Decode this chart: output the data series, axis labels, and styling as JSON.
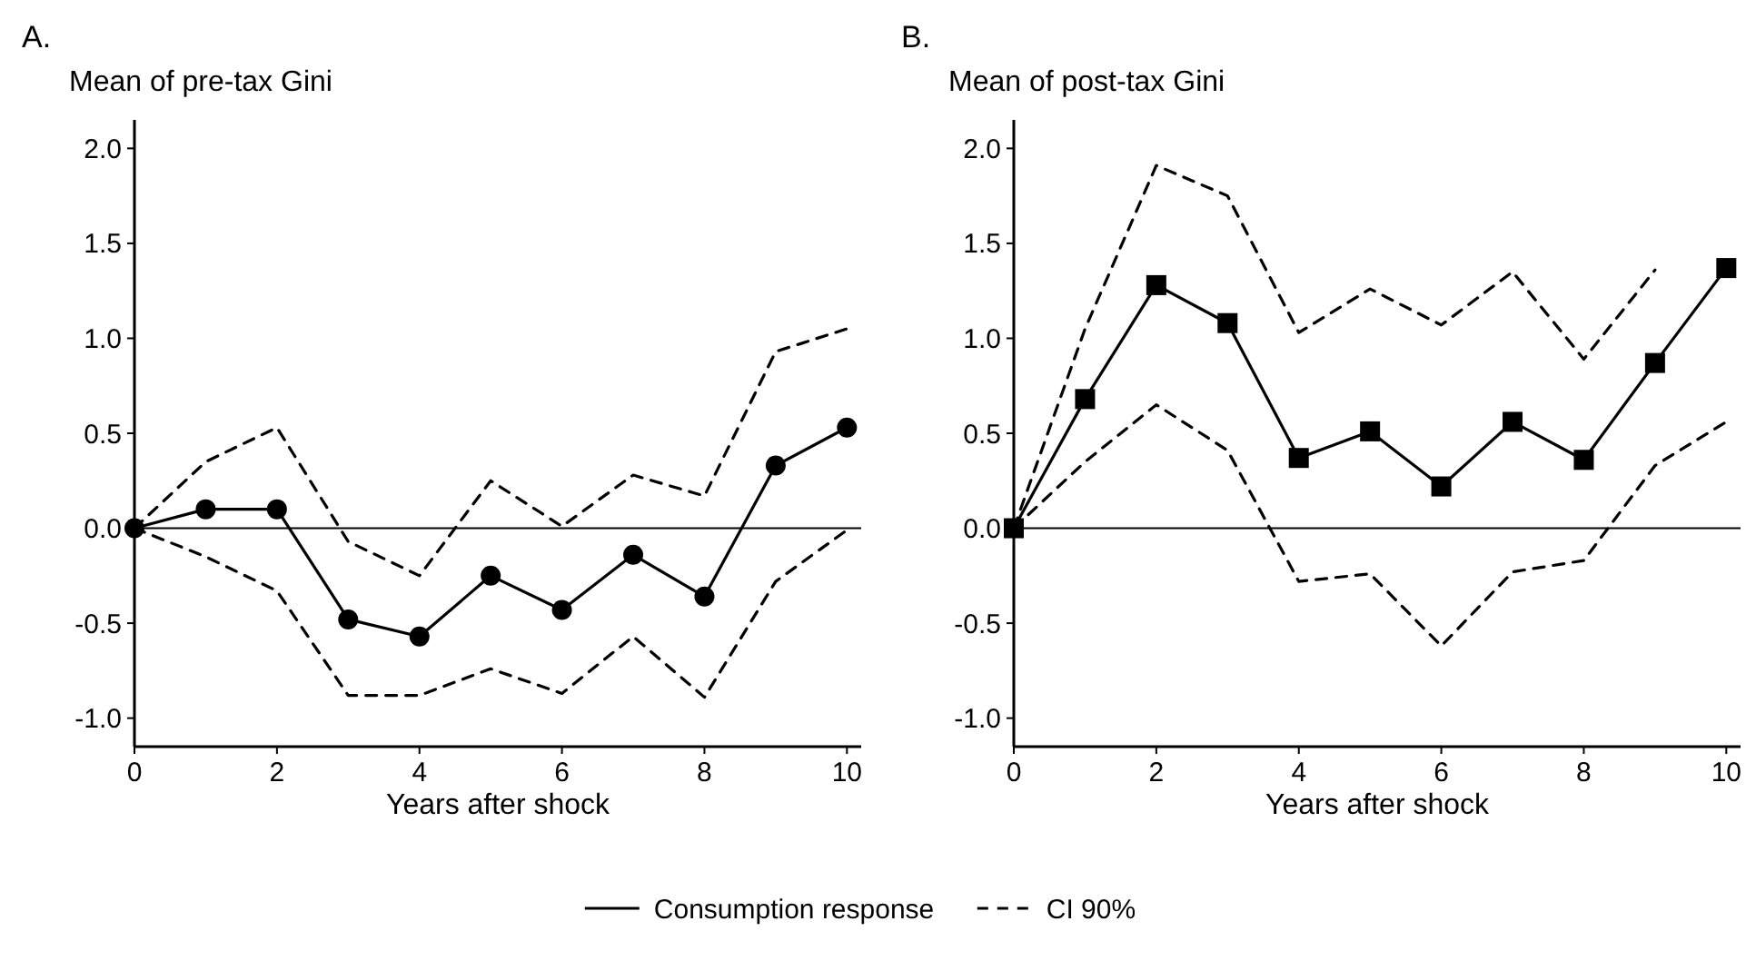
{
  "chart_data": [
    {
      "type": "line",
      "title": "A.",
      "subtitle": "Mean of pre-tax Gini",
      "xlabel": "Years after shock",
      "x": [
        0,
        1,
        2,
        3,
        4,
        5,
        6,
        7,
        8,
        9,
        10
      ],
      "xlim": [
        0,
        10.2
      ],
      "xticks": [
        0,
        2,
        4,
        6,
        8,
        10
      ],
      "ylim": [
        -1.15,
        2.15
      ],
      "yticks": [
        {
          "value": -1,
          "label": "-1.0"
        },
        {
          "value": -0.5,
          "label": "-0.5"
        },
        {
          "value": 0,
          "label": "0.0"
        },
        {
          "value": 0.5,
          "label": "0.5"
        },
        {
          "value": 1,
          "label": "1.0"
        },
        {
          "value": 1.5,
          "label": "1.5"
        },
        {
          "value": 2,
          "label": "2.0"
        }
      ],
      "ref_lines": [
        {
          "axis": "y",
          "value": 0,
          "color": "#000000"
        }
      ],
      "legend": "bottom",
      "series": [
        {
          "name": "Consumption response",
          "color": "#000000",
          "marker": "circle",
          "line_style": "solid",
          "values": [
            0,
            0.1,
            0.1,
            -0.48,
            -0.57,
            -0.25,
            -0.43,
            -0.14,
            -0.36,
            0.33,
            0.53
          ]
        },
        {
          "name": "CI 90%",
          "color": "#000000",
          "marker": "none",
          "line_style": "dashed",
          "values": [
            0,
            0.35,
            0.53,
            -0.07,
            -0.25,
            0.25,
            0.01,
            0.28,
            0.17,
            0.93,
            1.05
          ]
        },
        {
          "color": "#000000",
          "marker": "none",
          "line_style": "dashed",
          "values": [
            0,
            -0.15,
            -0.33,
            -0.88,
            -0.88,
            -0.74,
            -0.87,
            -0.57,
            -0.89,
            -0.28,
            -0.01
          ]
        }
      ]
    },
    {
      "type": "line",
      "title": "B.",
      "subtitle": "Mean of post-tax Gini",
      "xlabel": "Years after shock",
      "x": [
        0,
        1,
        2,
        3,
        4,
        5,
        6,
        7,
        8,
        9,
        10
      ],
      "xlim": [
        0,
        10.2
      ],
      "xticks": [
        0,
        2,
        4,
        6,
        8,
        10
      ],
      "ylim": [
        -1.15,
        2.15
      ],
      "yticks": [
        {
          "value": -1,
          "label": "-1.0"
        },
        {
          "value": -0.5,
          "label": "-0.5"
        },
        {
          "value": 0,
          "label": "0.0"
        },
        {
          "value": 0.5,
          "label": "0.5"
        },
        {
          "value": 1,
          "label": "1.0"
        },
        {
          "value": 1.5,
          "label": "1.5"
        },
        {
          "value": 2,
          "label": "2.0"
        }
      ],
      "ref_lines": [
        {
          "axis": "y",
          "value": 0,
          "color": "#000000"
        }
      ],
      "series": [
        {
          "color": "#000000",
          "marker": "square",
          "line_style": "solid",
          "values": [
            0,
            0.68,
            1.28,
            1.08,
            0.37,
            0.51,
            0.22,
            0.56,
            0.36,
            0.87,
            1.37
          ]
        },
        {
          "color": "#000000",
          "marker": "none",
          "line_style": "dashed",
          "values": [
            0,
            1.05,
            1.91,
            1.75,
            1.03,
            1.26,
            1.07,
            1.35,
            0.89,
            1.36,
            null
          ]
        },
        {
          "color": "#000000",
          "marker": "none",
          "line_style": "dashed",
          "values": [
            0,
            0.35,
            0.65,
            0.41,
            -0.28,
            -0.24,
            -0.62,
            -0.23,
            -0.17,
            0.33,
            0.56
          ]
        }
      ]
    }
  ]
}
